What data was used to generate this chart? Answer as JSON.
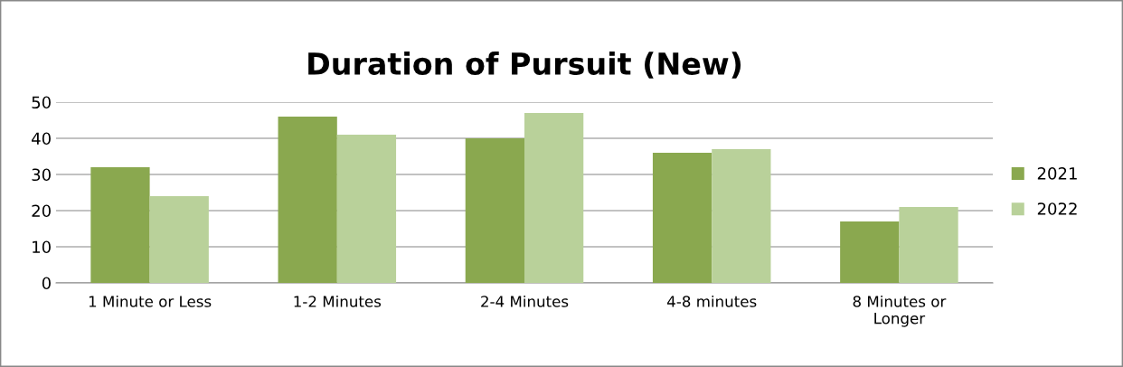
{
  "chart_data": {
    "type": "bar",
    "title": "Duration of Pursuit (New)",
    "categories": [
      "1 Minute or Less",
      "1-2 Minutes",
      "2-4 Minutes",
      "4-8 minutes",
      "8 Minutes or\nLonger"
    ],
    "series": [
      {
        "name": "2021",
        "color": "#8aa84f",
        "values": [
          32,
          46,
          40,
          36,
          17
        ]
      },
      {
        "name": "2022",
        "color": "#b9d19a",
        "values": [
          24,
          41,
          47,
          37,
          21
        ]
      }
    ],
    "ylim": [
      0,
      50
    ],
    "yticks": [
      0,
      10,
      20,
      30,
      40,
      50
    ],
    "grid": "y",
    "legend": "right"
  }
}
